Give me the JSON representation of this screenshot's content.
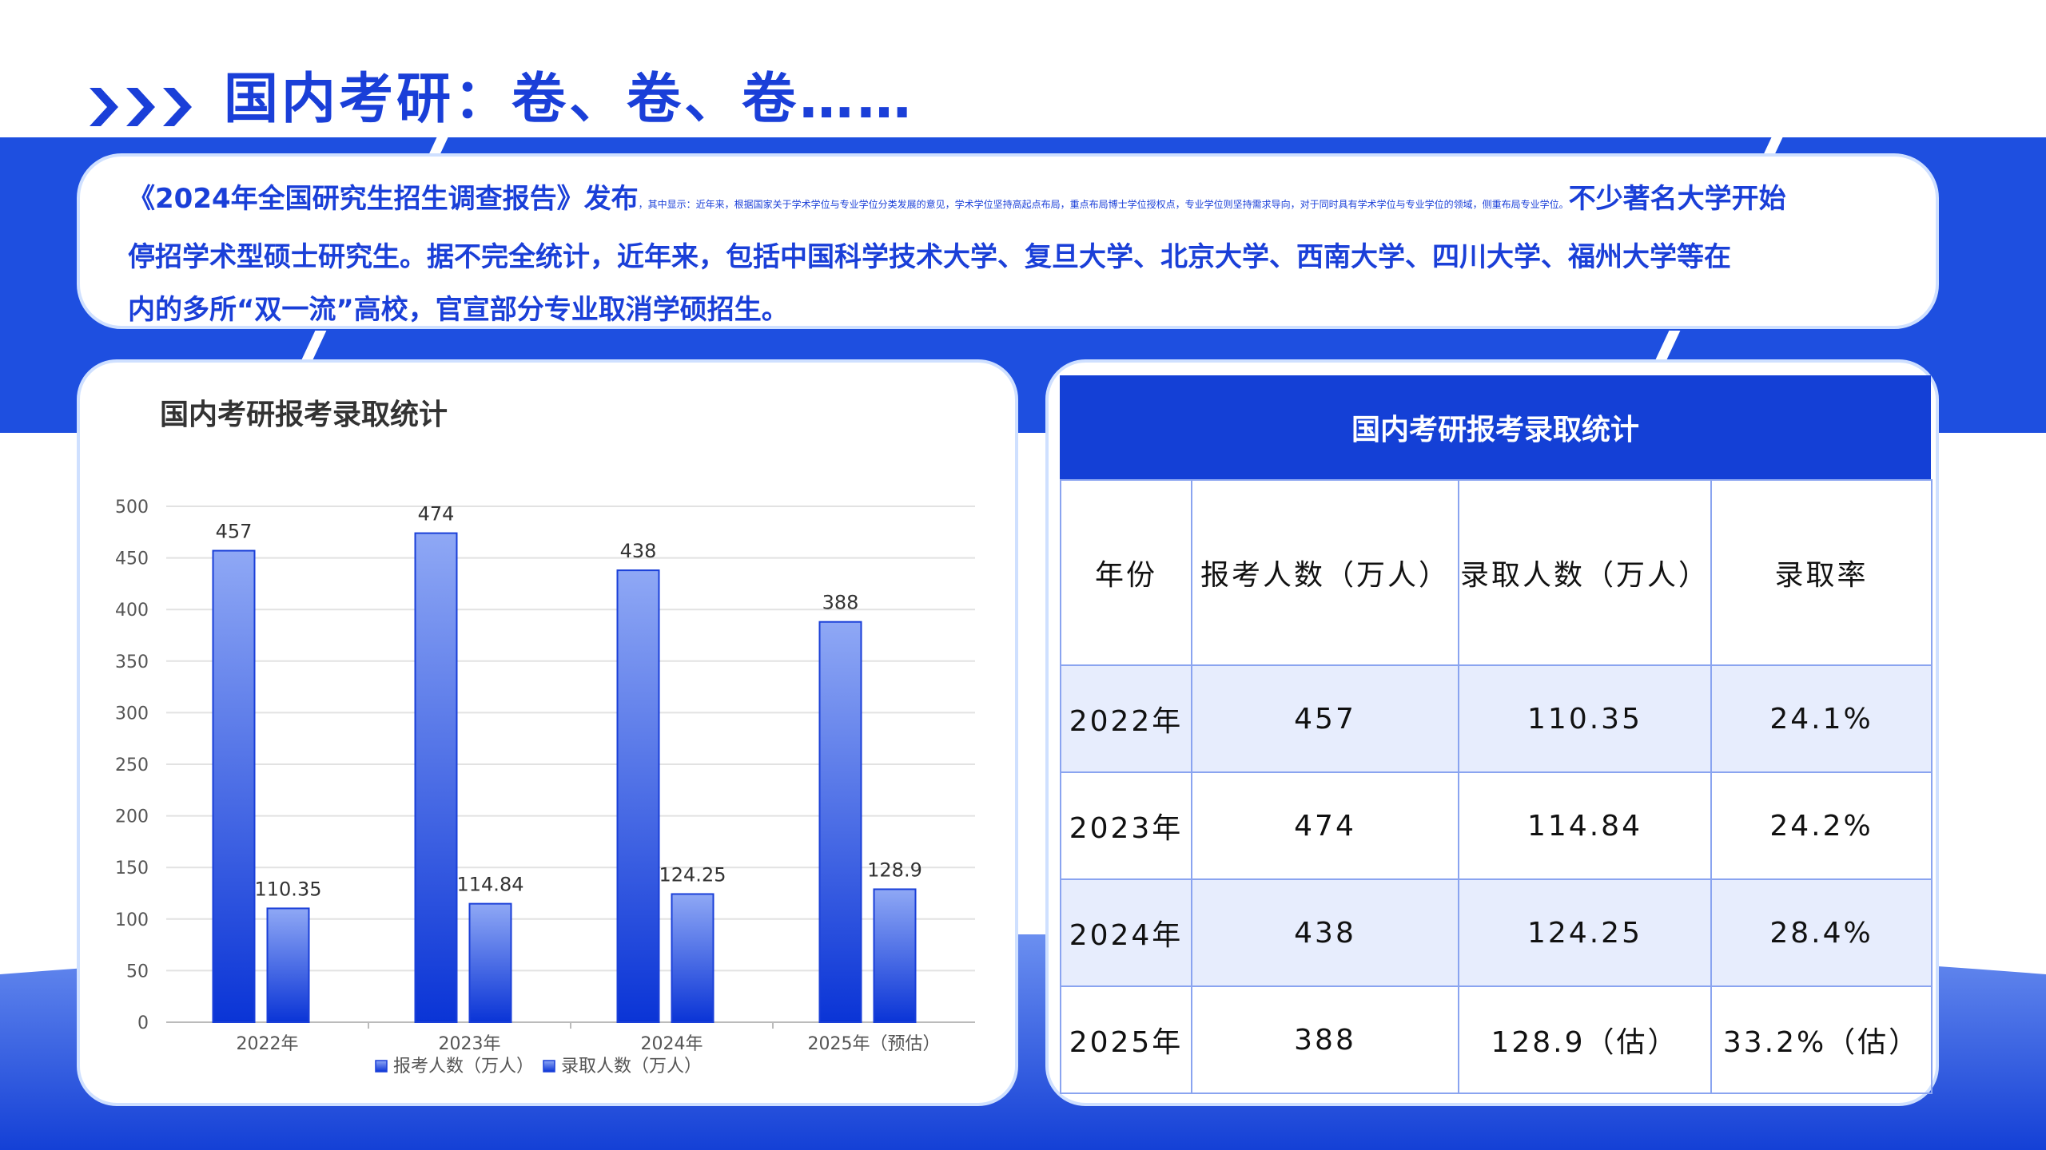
{
  "title": "国内考研：卷、卷、卷……",
  "intro": {
    "lead": "《2024年全国研究生招生调查报告》发布",
    "fine_print": "，其中显示：近年来，根据国家关于学术学位与专业学位分类发展的意见，学术学位坚持高起点布局，重点布局博士学位授权点，专业学位则坚持需求导向，对于同时具有学术学位与专业学位的领域，侧重布局专业学位。",
    "line1_tail": "不少著名大学开始",
    "line2": "停招学术型硕士研究生。据不完全统计，近年来，包括中国科学技术大学、复旦大学、北京大学、西南大学、四川大学、福州大学等在",
    "line3": "内的多所“双一流”高校，官宣部分专业取消学硕招生。"
  },
  "chart_data": {
    "type": "bar",
    "title": "国内考研报考录取统计",
    "categories": [
      "2022年",
      "2023年",
      "2024年",
      "2025年（预估）"
    ],
    "series": [
      {
        "name": "报考人数（万人）",
        "values": [
          457,
          474,
          438,
          388
        ],
        "labels": [
          "457",
          "474",
          "438",
          "388"
        ]
      },
      {
        "name": "录取人数（万人）",
        "values": [
          110.35,
          114.84,
          124.25,
          128.9
        ],
        "labels": [
          "110.35",
          "114.84",
          "124.25",
          "128.9"
        ]
      }
    ],
    "ylim": [
      0,
      500
    ],
    "yticks": [
      "0",
      "50",
      "100",
      "150",
      "200",
      "250",
      "300",
      "350",
      "400",
      "450",
      "500"
    ],
    "grid": true,
    "legend": "bottom"
  },
  "table": {
    "title": "国内考研报考录取统计",
    "headers": [
      "年份",
      "报考人数（万人）",
      "录取人数（万人）",
      "录取率"
    ],
    "rows": [
      [
        "2022年",
        "457",
        "110.35",
        "24.1%"
      ],
      [
        "2023年",
        "474",
        "114.84",
        "24.2%"
      ],
      [
        "2024年",
        "438",
        "124.25",
        "28.4%"
      ],
      [
        "2025年",
        "388",
        "128.9（估）",
        "33.2%（估）"
      ]
    ]
  },
  "colors": {
    "accent": "#1a3fd8",
    "band": "#1e4fe0",
    "bar_top": "#8fa8f5",
    "bar_bottom": "#0a34d6"
  }
}
